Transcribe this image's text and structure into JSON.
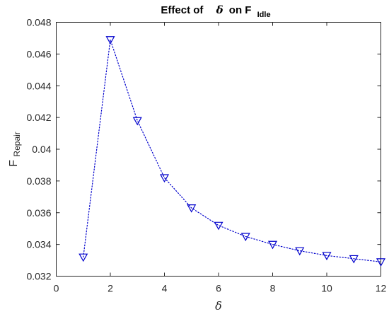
{
  "chart_data": {
    "type": "line",
    "title_prefix": "Effect of",
    "title_symbol": "δ",
    "title_middle": "on F",
    "title_subscript": "Idle",
    "xlabel": "δ",
    "ylabel_main": "F",
    "ylabel_subscript": "Repair",
    "xlim": [
      0,
      12
    ],
    "ylim": [
      0.032,
      0.048
    ],
    "xticks": [
      0,
      2,
      4,
      6,
      8,
      10,
      12
    ],
    "xtick_labels": [
      "0",
      "2",
      "4",
      "6",
      "8",
      "10",
      "12"
    ],
    "yticks": [
      0.032,
      0.034,
      0.036,
      0.038,
      0.04,
      0.042,
      0.044,
      0.046,
      0.048
    ],
    "ytick_labels": [
      "0.032",
      "0.034",
      "0.036",
      "0.038",
      "0.04",
      "0.042",
      "0.044",
      "0.046",
      "0.048"
    ],
    "grid": false,
    "series": [
      {
        "x": [
          1,
          2,
          3,
          4,
          5,
          6,
          7,
          8,
          9,
          10,
          11,
          12
        ],
        "y": [
          0.0332,
          0.0469,
          0.0418,
          0.0382,
          0.0363,
          0.0352,
          0.0345,
          0.034,
          0.0336,
          0.0333,
          0.0331,
          0.0329
        ],
        "color": "#0000cc",
        "line_style": "dotted",
        "marker": "triangle-down"
      }
    ]
  }
}
